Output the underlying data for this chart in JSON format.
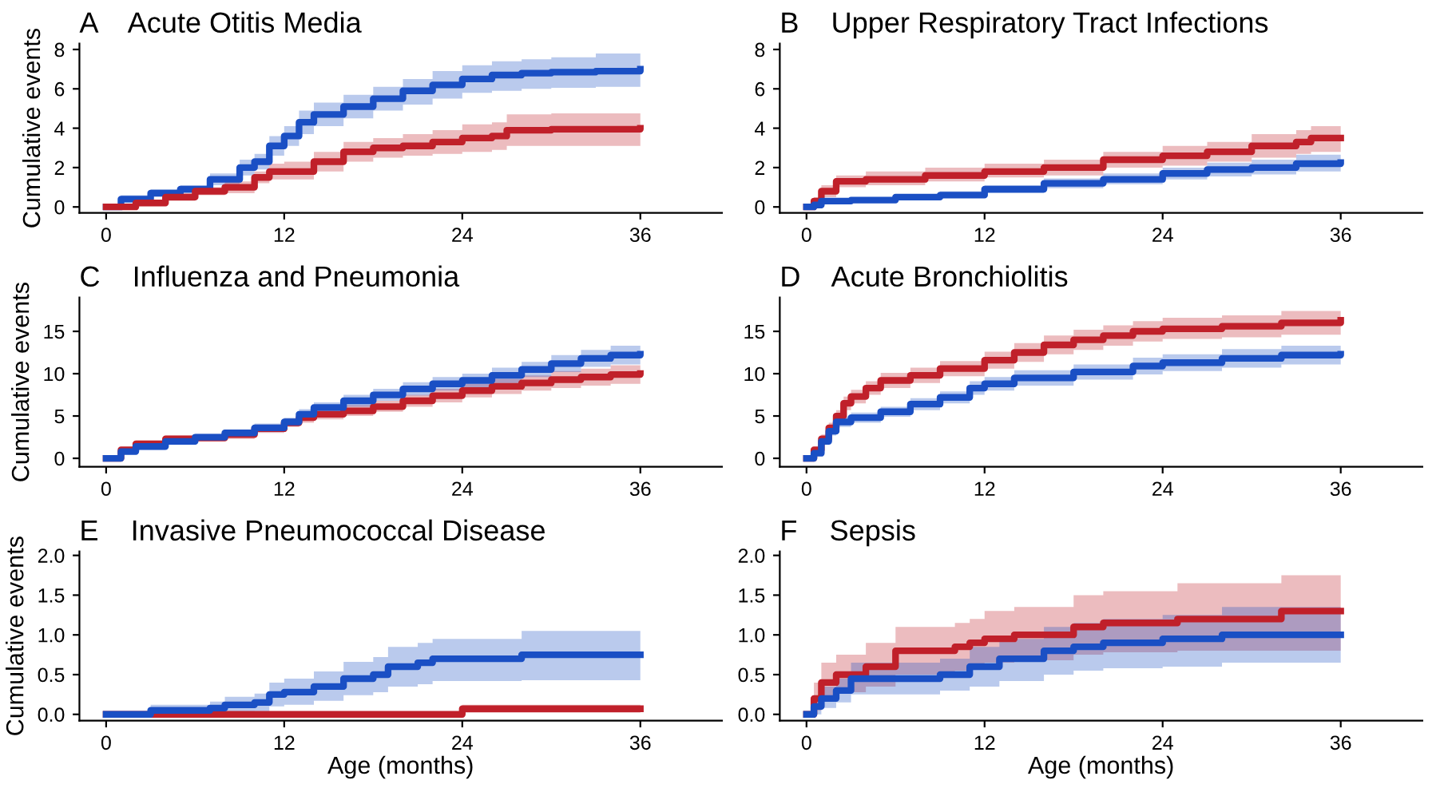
{
  "chart_data": [
    {
      "type": "step",
      "title": "A    Acute Otitis Media",
      "ylabel": "Cumulative events",
      "xlim": [
        -1.8,
        41.5
      ],
      "ylim": [
        -0.3,
        8.3
      ],
      "xticks": [
        0,
        12,
        24,
        36
      ],
      "yticks": [
        0,
        2,
        4,
        6,
        8
      ],
      "grid": false,
      "legend": false,
      "series": [
        {
          "color": "#1a4fc4",
          "x": [
            0,
            1,
            3,
            5,
            7,
            9,
            10,
            11,
            12,
            13,
            14,
            16,
            18,
            20,
            22,
            24,
            26,
            28,
            30,
            33,
            36
          ],
          "values": [
            0,
            0.4,
            0.7,
            0.9,
            1.4,
            2.0,
            2.3,
            3.1,
            3.6,
            4.3,
            4.7,
            5.1,
            5.5,
            5.9,
            6.2,
            6.5,
            6.7,
            6.8,
            6.85,
            6.9,
            7.0
          ],
          "lower": [
            0,
            0.2,
            0.5,
            0.7,
            1.1,
            1.6,
            1.9,
            2.6,
            3.1,
            3.7,
            4.1,
            4.5,
            4.9,
            5.2,
            5.5,
            5.8,
            5.9,
            6.0,
            6.05,
            6.1,
            6.1
          ],
          "upper": [
            0,
            0.6,
            0.9,
            1.1,
            1.7,
            2.4,
            2.7,
            3.6,
            4.1,
            4.9,
            5.3,
            5.7,
            6.1,
            6.5,
            6.9,
            7.2,
            7.4,
            7.5,
            7.6,
            7.8,
            7.9
          ]
        },
        {
          "color": "#c0202a",
          "x": [
            0,
            2,
            4,
            6,
            8,
            10,
            11,
            12,
            14,
            16,
            18,
            20,
            22,
            24,
            26,
            27,
            30,
            36
          ],
          "values": [
            0,
            0.2,
            0.5,
            0.8,
            1.0,
            1.5,
            1.8,
            1.8,
            2.3,
            2.8,
            3.0,
            3.1,
            3.3,
            3.5,
            3.6,
            3.9,
            3.95,
            4.0
          ],
          "lower": [
            0,
            0.1,
            0.3,
            0.6,
            0.7,
            1.2,
            1.4,
            1.4,
            1.8,
            2.3,
            2.5,
            2.6,
            2.7,
            2.8,
            2.9,
            3.1,
            3.1,
            3.1
          ],
          "upper": [
            0,
            0.3,
            0.7,
            1.0,
            1.3,
            1.8,
            2.2,
            2.3,
            2.8,
            3.3,
            3.5,
            3.7,
            3.9,
            4.2,
            4.3,
            4.7,
            4.75,
            4.8
          ]
        }
      ]
    },
    {
      "type": "step",
      "title": "B    Upper Respiratory Tract Infections",
      "xlim": [
        -1.8,
        41.5
      ],
      "ylim": [
        -0.3,
        8.3
      ],
      "xticks": [
        0,
        12,
        24,
        36
      ],
      "yticks": [
        0,
        2,
        4,
        6,
        8
      ],
      "grid": false,
      "legend": false,
      "series": [
        {
          "color": "#c0202a",
          "x": [
            0,
            0.5,
            1,
            2,
            4,
            8,
            12,
            16,
            20,
            24,
            27,
            30,
            33,
            34,
            36
          ],
          "values": [
            0,
            0.3,
            0.8,
            1.3,
            1.4,
            1.6,
            1.8,
            2.0,
            2.4,
            2.6,
            2.8,
            3.1,
            3.3,
            3.5,
            3.5
          ],
          "lower": [
            0,
            0.1,
            0.5,
            1.0,
            1.1,
            1.3,
            1.5,
            1.6,
            2.0,
            2.1,
            2.3,
            2.5,
            2.7,
            2.8,
            2.8
          ],
          "upper": [
            0,
            0.5,
            1.1,
            1.6,
            1.8,
            2.0,
            2.2,
            2.4,
            2.8,
            3.1,
            3.3,
            3.7,
            3.9,
            4.1,
            4.2
          ]
        },
        {
          "color": "#1a4fc4",
          "x": [
            0,
            0.5,
            1,
            3,
            6,
            9,
            12,
            16,
            20,
            24,
            27,
            30,
            33,
            36
          ],
          "values": [
            0,
            0.1,
            0.3,
            0.35,
            0.5,
            0.6,
            0.9,
            1.2,
            1.4,
            1.7,
            1.9,
            2.0,
            2.2,
            2.25
          ],
          "lower": [
            0,
            0.0,
            0.2,
            0.25,
            0.35,
            0.45,
            0.7,
            0.95,
            1.15,
            1.4,
            1.55,
            1.65,
            1.8,
            1.8
          ],
          "upper": [
            0,
            0.2,
            0.4,
            0.5,
            0.65,
            0.8,
            1.1,
            1.45,
            1.7,
            2.0,
            2.25,
            2.4,
            2.65,
            2.8
          ]
        }
      ]
    },
    {
      "type": "step",
      "title": "C    Influenza and Pneumonia",
      "ylabel": "Cumulative events",
      "xlim": [
        -1.8,
        41.5
      ],
      "ylim": [
        -1,
        19
      ],
      "xticks": [
        0,
        12,
        24,
        36
      ],
      "yticks": [
        0,
        5,
        10,
        15
      ],
      "grid": false,
      "legend": false,
      "series": [
        {
          "color": "#c0202a",
          "x": [
            0,
            1,
            2,
            4,
            6,
            8,
            10,
            12,
            13,
            14,
            16,
            18,
            20,
            22,
            24,
            26,
            28,
            30,
            32,
            34,
            36
          ],
          "values": [
            0,
            1.0,
            1.7,
            2.3,
            2.4,
            2.8,
            3.5,
            4.2,
            4.8,
            5.2,
            5.6,
            6.1,
            6.8,
            7.4,
            8.0,
            8.5,
            8.9,
            9.3,
            9.6,
            9.9,
            10.0
          ],
          "lower": [
            0,
            0.7,
            1.3,
            1.9,
            2.0,
            2.3,
            3.0,
            3.7,
            4.2,
            4.6,
            5.0,
            5.5,
            6.1,
            6.6,
            7.2,
            7.6,
            8.0,
            8.3,
            8.6,
            8.8,
            8.9
          ],
          "upper": [
            0,
            1.3,
            2.1,
            2.7,
            2.8,
            3.3,
            4.0,
            4.7,
            5.4,
            5.8,
            6.3,
            6.8,
            7.5,
            8.2,
            8.8,
            9.4,
            9.8,
            10.3,
            10.6,
            11.0,
            11.2
          ]
        },
        {
          "color": "#1a4fc4",
          "x": [
            0,
            1,
            2,
            4,
            6,
            8,
            10,
            12,
            13,
            14,
            16,
            18,
            20,
            22,
            24,
            26,
            28,
            30,
            32,
            34,
            36
          ],
          "values": [
            0,
            0.8,
            1.4,
            2.0,
            2.5,
            3.0,
            3.6,
            4.3,
            5.2,
            6.0,
            6.8,
            7.5,
            8.2,
            8.8,
            9.2,
            9.8,
            10.5,
            11.2,
            11.8,
            12.2,
            12.3
          ],
          "lower": [
            0,
            0.5,
            1.0,
            1.6,
            2.1,
            2.6,
            3.1,
            3.8,
            4.6,
            5.4,
            6.1,
            6.8,
            7.4,
            8.0,
            8.4,
            8.9,
            9.6,
            10.2,
            10.8,
            11.1,
            11.2
          ],
          "upper": [
            0,
            1.1,
            1.8,
            2.4,
            2.9,
            3.4,
            4.1,
            4.8,
            5.8,
            6.6,
            7.5,
            8.2,
            9.0,
            9.6,
            10.0,
            10.7,
            11.4,
            12.2,
            12.8,
            13.3,
            13.5
          ]
        }
      ]
    },
    {
      "type": "step",
      "title": "D    Acute Bronchiolitis",
      "xlim": [
        -1.8,
        41.5
      ],
      "ylim": [
        -1,
        19
      ],
      "xticks": [
        0,
        12,
        24,
        36
      ],
      "yticks": [
        0,
        5,
        10,
        15
      ],
      "grid": false,
      "legend": false,
      "series": [
        {
          "color": "#c0202a",
          "x": [
            0,
            0.5,
            1,
            1.5,
            2,
            2.5,
            3,
            4,
            5,
            7,
            9,
            12,
            14,
            16,
            18,
            20,
            22,
            24,
            28,
            32,
            36
          ],
          "values": [
            0,
            1.0,
            2.3,
            3.6,
            5.0,
            6.5,
            7.3,
            8.3,
            9.2,
            9.8,
            10.6,
            11.6,
            12.5,
            13.4,
            14.0,
            14.5,
            15.0,
            15.3,
            15.6,
            16.0,
            16.3
          ],
          "lower": [
            0,
            0.7,
            1.8,
            3.0,
            4.3,
            5.7,
            6.5,
            7.5,
            8.3,
            8.9,
            9.7,
            10.6,
            11.4,
            12.3,
            12.8,
            13.3,
            13.8,
            14.1,
            14.3,
            14.6,
            14.9
          ],
          "upper": [
            0,
            1.3,
            2.8,
            4.2,
            5.7,
            7.3,
            8.1,
            9.1,
            10.1,
            10.7,
            11.5,
            12.6,
            13.6,
            14.5,
            15.2,
            15.7,
            16.2,
            16.6,
            16.9,
            17.4,
            17.8
          ]
        },
        {
          "color": "#1a4fc4",
          "x": [
            0,
            0.5,
            1,
            1.5,
            2,
            3,
            5,
            7,
            9,
            11,
            12,
            14,
            18,
            22,
            24,
            28,
            32,
            36
          ],
          "values": [
            0,
            0.6,
            2.0,
            3.2,
            4.3,
            4.8,
            5.5,
            6.4,
            7.2,
            8.3,
            8.8,
            9.5,
            10.2,
            10.9,
            11.3,
            11.8,
            12.2,
            12.3
          ],
          "lower": [
            0,
            0.3,
            1.6,
            2.7,
            3.7,
            4.2,
            4.9,
            5.7,
            6.5,
            7.5,
            8.0,
            8.6,
            9.3,
            9.9,
            10.3,
            10.7,
            11.1,
            11.3
          ],
          "upper": [
            0,
            0.9,
            2.4,
            3.7,
            4.9,
            5.4,
            6.1,
            7.1,
            7.9,
            9.1,
            9.6,
            10.4,
            11.1,
            11.9,
            12.3,
            12.9,
            13.3,
            13.4
          ]
        }
      ]
    },
    {
      "type": "step",
      "title": "E    Invasive Pneumococcal Disease",
      "ylabel": "Cumulative events",
      "xlabel": "Age (months)",
      "xlim": [
        -1.8,
        41.5
      ],
      "ylim": [
        -0.08,
        2.05
      ],
      "xticks": [
        0,
        12,
        24,
        36
      ],
      "yticks": [
        {
          "value": 0,
          "label": "0.0"
        },
        0.5,
        {
          "value": 1,
          "label": "1.0"
        },
        1.5,
        {
          "value": 2,
          "label": "2.0"
        }
      ],
      "grid": false,
      "legend": false,
      "series": [
        {
          "color": "#c0202a",
          "x": [
            0,
            24,
            36
          ],
          "values": [
            0,
            0.07,
            0.07
          ],
          "lower": [
            0,
            0.02,
            0.02
          ],
          "upper": [
            0,
            0.12,
            0.12
          ]
        },
        {
          "color": "#1a4fc4",
          "x": [
            0,
            3,
            7,
            8,
            10,
            11,
            12,
            14,
            16,
            18,
            19,
            21,
            22,
            27,
            28,
            36
          ],
          "values": [
            0,
            0.05,
            0.08,
            0.12,
            0.15,
            0.25,
            0.28,
            0.35,
            0.45,
            0.5,
            0.6,
            0.65,
            0.7,
            0.7,
            0.75,
            0.75
          ],
          "lower": [
            0,
            0.0,
            0.0,
            0.02,
            0.04,
            0.1,
            0.12,
            0.17,
            0.24,
            0.28,
            0.35,
            0.38,
            0.42,
            0.42,
            0.43,
            0.43
          ],
          "upper": [
            0,
            0.12,
            0.16,
            0.22,
            0.26,
            0.4,
            0.45,
            0.54,
            0.66,
            0.72,
            0.85,
            0.9,
            0.95,
            0.95,
            1.05,
            1.05
          ]
        }
      ]
    },
    {
      "type": "step",
      "title": "F    Sepsis",
      "xlabel": "Age (months)",
      "xlim": [
        -1.8,
        41.5
      ],
      "ylim": [
        -0.08,
        2.05
      ],
      "xticks": [
        0,
        12,
        24,
        36
      ],
      "yticks": [
        {
          "value": 0,
          "label": "0.0"
        },
        0.5,
        {
          "value": 1,
          "label": "1.0"
        },
        1.5,
        {
          "value": 2,
          "label": "2.0"
        }
      ],
      "grid": false,
      "legend": false,
      "series": [
        {
          "color": "#c0202a",
          "x": [
            0,
            0.5,
            1,
            2,
            4,
            6,
            10,
            11,
            12,
            14,
            18,
            20,
            25,
            32,
            36
          ],
          "values": [
            0,
            0.2,
            0.4,
            0.5,
            0.6,
            0.8,
            0.85,
            0.9,
            0.95,
            1.0,
            1.1,
            1.15,
            1.2,
            1.3,
            1.3
          ],
          "lower": [
            0,
            0.05,
            0.2,
            0.28,
            0.35,
            0.5,
            0.55,
            0.6,
            0.65,
            0.68,
            0.75,
            0.78,
            0.8,
            0.8,
            0.8
          ],
          "upper": [
            0,
            0.4,
            0.65,
            0.75,
            0.9,
            1.1,
            1.15,
            1.2,
            1.3,
            1.35,
            1.5,
            1.55,
            1.65,
            1.75,
            1.75
          ]
        },
        {
          "color": "#1a4fc4",
          "x": [
            0,
            0.5,
            1,
            2,
            3,
            5,
            9,
            11,
            13,
            16,
            18,
            20,
            24,
            28,
            36
          ],
          "values": [
            0,
            0.1,
            0.2,
            0.3,
            0.45,
            0.45,
            0.5,
            0.6,
            0.7,
            0.8,
            0.85,
            0.9,
            0.95,
            1.0,
            1.0
          ],
          "lower": [
            0,
            0.0,
            0.08,
            0.15,
            0.25,
            0.25,
            0.3,
            0.35,
            0.42,
            0.5,
            0.55,
            0.58,
            0.6,
            0.65,
            0.65
          ],
          "upper": [
            0,
            0.2,
            0.35,
            0.45,
            0.65,
            0.65,
            0.7,
            0.85,
            0.95,
            1.1,
            1.15,
            1.2,
            1.25,
            1.35,
            1.35
          ]
        }
      ]
    }
  ]
}
